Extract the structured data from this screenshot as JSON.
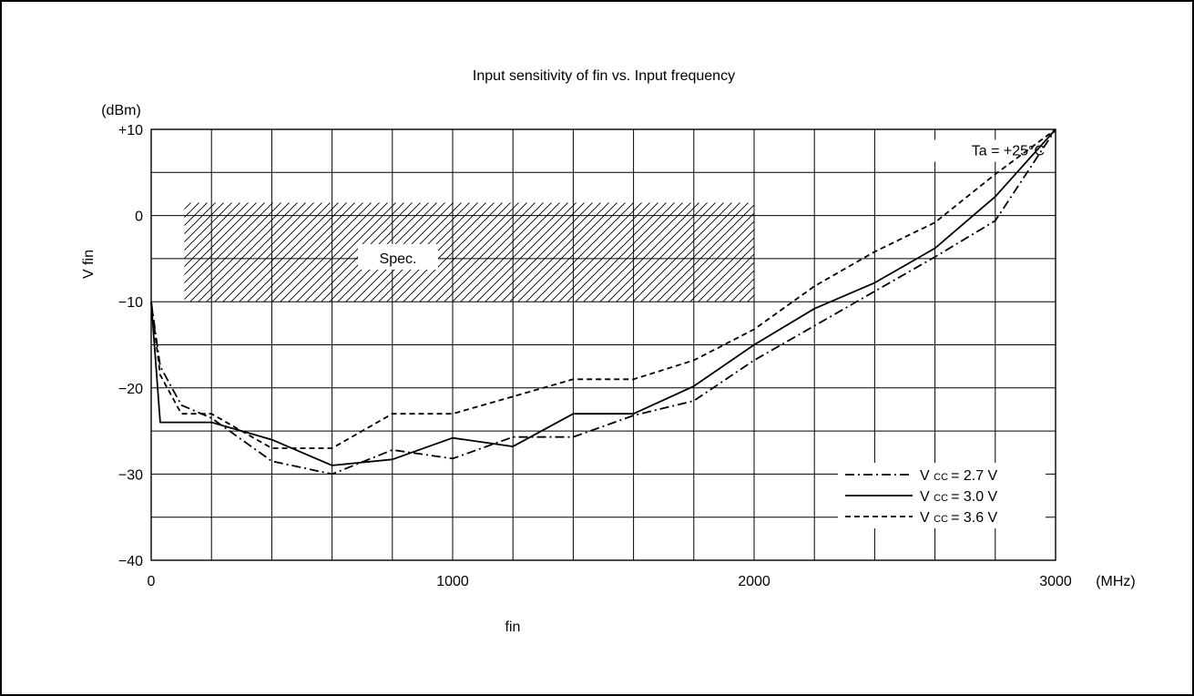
{
  "chart_data": {
    "type": "line",
    "title": "Input sensitivity of fin vs. Input frequency",
    "xlabel": "fin",
    "ylabel": "V fin",
    "y_unit": "(dBm)",
    "x_unit": "(MHz)",
    "xlim": [
      0,
      3000
    ],
    "ylim": [
      -40,
      10
    ],
    "x_tick_values": [
      0,
      1000,
      2000,
      3000
    ],
    "x_tick_labels": [
      "0",
      "1000",
      "2000",
      "3000"
    ],
    "y_tick_values": [
      10,
      0,
      -10,
      -20,
      -30,
      -40
    ],
    "y_tick_labels": [
      "+10",
      "0",
      "−10",
      "−20",
      "−30",
      "−40"
    ],
    "x_gridlines": [
      0,
      200,
      400,
      600,
      800,
      1000,
      1200,
      1400,
      1600,
      1800,
      2000,
      2200,
      2400,
      2600,
      2800,
      3000
    ],
    "y_gridlines": [
      10,
      5,
      0,
      -5,
      -10,
      -15,
      -20,
      -25,
      -30,
      -35,
      -40
    ],
    "grid": true,
    "legend_position": "bottom-right",
    "annotation": "Ta = +25°C",
    "spec_region": {
      "label": "Spec.",
      "x": [
        110,
        2000
      ],
      "y": [
        -10,
        1.5
      ]
    },
    "series": [
      {
        "name": "V CC = 2.7 V",
        "label_prefix": "V",
        "label_sub": "CC",
        "label_suffix": "= 2.7 V",
        "style": "dashdot",
        "x": [
          0,
          30,
          100,
          200,
          400,
          600,
          800,
          1000,
          1200,
          1400,
          1600,
          1800,
          2000,
          2200,
          2400,
          2600,
          2800,
          3000
        ],
        "y": [
          -10,
          -17.5,
          -22,
          -23.5,
          -28.5,
          -30,
          -27.2,
          -28.2,
          -25.7,
          -25.7,
          -23.2,
          -21.5,
          -16.8,
          -12.8,
          -8.8,
          -4.8,
          -0.6,
          10
        ]
      },
      {
        "name": "V CC = 3.0 V",
        "label_prefix": "V",
        "label_sub": "CC",
        "label_suffix": "= 3.0 V",
        "style": "solid",
        "x": [
          0,
          30,
          100,
          200,
          400,
          600,
          800,
          1000,
          1200,
          1400,
          1600,
          1800,
          2000,
          2200,
          2400,
          2600,
          2800,
          3000
        ],
        "y": [
          -10,
          -24,
          -24,
          -24,
          -26,
          -29,
          -28.3,
          -25.8,
          -26.8,
          -23,
          -23,
          -19.8,
          -15,
          -10.8,
          -7.8,
          -3.8,
          2.2,
          10
        ]
      },
      {
        "name": "V CC = 3.6 V",
        "label_prefix": "V",
        "label_sub": "CC",
        "label_suffix": "= 3.6 V",
        "style": "dashed",
        "x": [
          0,
          30,
          100,
          200,
          400,
          600,
          800,
          1000,
          1200,
          1400,
          1600,
          1800,
          2000,
          2200,
          2400,
          2600,
          2800,
          3000
        ],
        "y": [
          -10,
          -18.5,
          -23,
          -23,
          -27,
          -27,
          -23,
          -23,
          -21,
          -19,
          -19,
          -16.8,
          -13.2,
          -8.2,
          -4.2,
          -0.8,
          4.8,
          10
        ]
      }
    ]
  }
}
